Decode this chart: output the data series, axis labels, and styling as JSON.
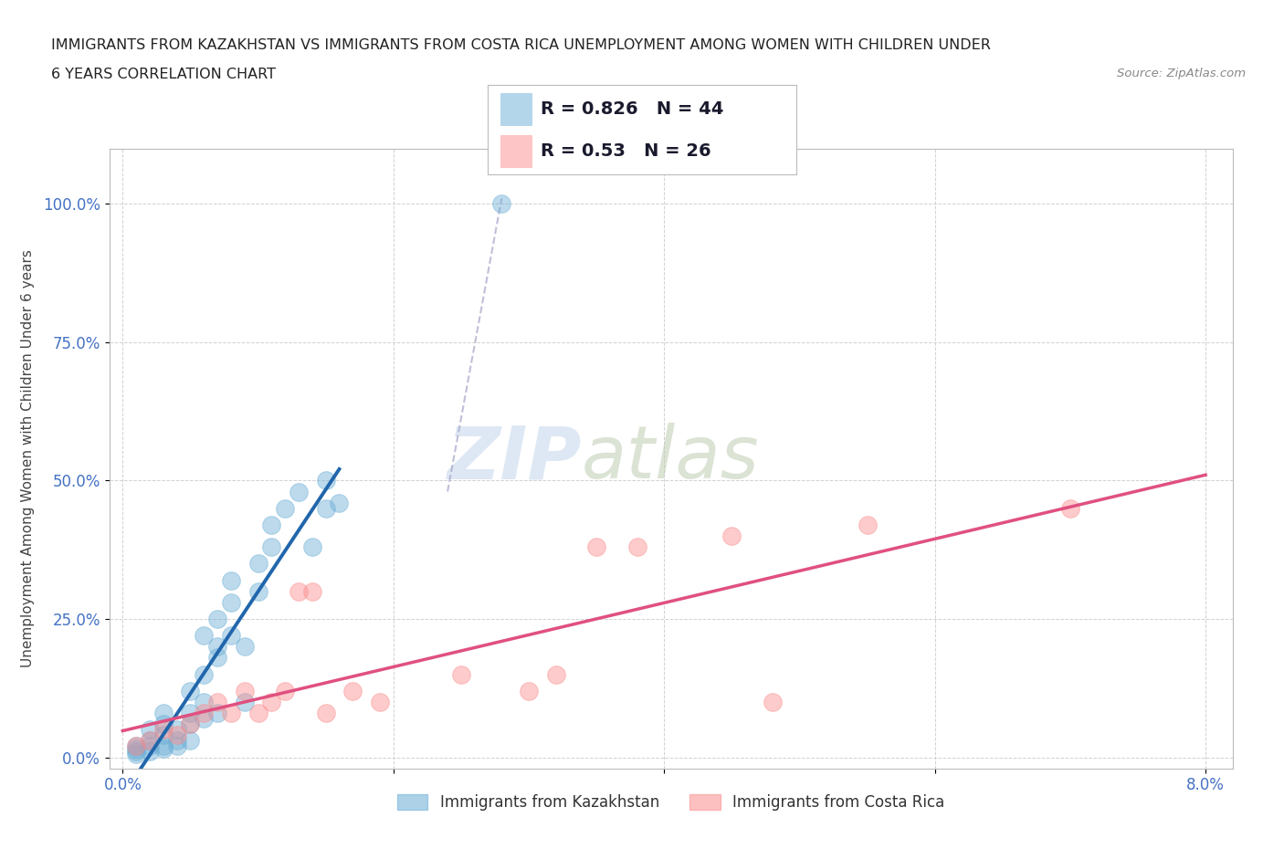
{
  "title_line1": "IMMIGRANTS FROM KAZAKHSTAN VS IMMIGRANTS FROM COSTA RICA UNEMPLOYMENT AMONG WOMEN WITH CHILDREN UNDER",
  "title_line2": "6 YEARS CORRELATION CHART",
  "source_text": "Source: ZipAtlas.com",
  "ylabel": "Unemployment Among Women with Children Under 6 years",
  "R_kaz": 0.826,
  "N_kaz": 44,
  "R_cr": 0.53,
  "N_cr": 26,
  "kazakhstan_color": "#6baed6",
  "costa_rica_color": "#fc8d8d",
  "kazakhstan_line_color": "#2166ac",
  "costa_rica_line_color": "#e05080",
  "kazakhstan_scatter": [
    [
      0.001,
      0.02
    ],
    [
      0.001,
      0.01
    ],
    [
      0.001,
      0.005
    ],
    [
      0.001,
      0.015
    ],
    [
      0.002,
      0.03
    ],
    [
      0.002,
      0.02
    ],
    [
      0.002,
      0.01
    ],
    [
      0.002,
      0.05
    ],
    [
      0.003,
      0.04
    ],
    [
      0.003,
      0.02
    ],
    [
      0.003,
      0.08
    ],
    [
      0.003,
      0.015
    ],
    [
      0.003,
      0.06
    ],
    [
      0.004,
      0.03
    ],
    [
      0.004,
      0.05
    ],
    [
      0.004,
      0.02
    ],
    [
      0.005,
      0.08
    ],
    [
      0.005,
      0.12
    ],
    [
      0.005,
      0.06
    ],
    [
      0.005,
      0.03
    ],
    [
      0.006,
      0.1
    ],
    [
      0.006,
      0.22
    ],
    [
      0.006,
      0.15
    ],
    [
      0.006,
      0.07
    ],
    [
      0.007,
      0.25
    ],
    [
      0.007,
      0.2
    ],
    [
      0.007,
      0.18
    ],
    [
      0.007,
      0.08
    ],
    [
      0.008,
      0.22
    ],
    [
      0.008,
      0.28
    ],
    [
      0.008,
      0.32
    ],
    [
      0.009,
      0.2
    ],
    [
      0.009,
      0.1
    ],
    [
      0.01,
      0.35
    ],
    [
      0.01,
      0.3
    ],
    [
      0.011,
      0.38
    ],
    [
      0.011,
      0.42
    ],
    [
      0.012,
      0.45
    ],
    [
      0.013,
      0.48
    ],
    [
      0.014,
      0.38
    ],
    [
      0.015,
      0.5
    ],
    [
      0.015,
      0.45
    ],
    [
      0.016,
      0.46
    ],
    [
      0.028,
      1.0
    ]
  ],
  "costa_rica_scatter": [
    [
      0.001,
      0.02
    ],
    [
      0.002,
      0.03
    ],
    [
      0.003,
      0.05
    ],
    [
      0.004,
      0.04
    ],
    [
      0.005,
      0.06
    ],
    [
      0.006,
      0.08
    ],
    [
      0.007,
      0.1
    ],
    [
      0.008,
      0.08
    ],
    [
      0.009,
      0.12
    ],
    [
      0.01,
      0.08
    ],
    [
      0.011,
      0.1
    ],
    [
      0.012,
      0.12
    ],
    [
      0.013,
      0.3
    ],
    [
      0.014,
      0.3
    ],
    [
      0.015,
      0.08
    ],
    [
      0.017,
      0.12
    ],
    [
      0.019,
      0.1
    ],
    [
      0.025,
      0.15
    ],
    [
      0.03,
      0.12
    ],
    [
      0.032,
      0.15
    ],
    [
      0.035,
      0.38
    ],
    [
      0.038,
      0.38
    ],
    [
      0.045,
      0.4
    ],
    [
      0.048,
      0.1
    ],
    [
      0.055,
      0.42
    ],
    [
      0.07,
      0.45
    ]
  ],
  "dashed_line": [
    [
      0.028,
      0.028
    ],
    [
      0.5,
      1.05
    ]
  ],
  "watermark_zip": "ZIP",
  "watermark_atlas": "atlas",
  "legend_label_kaz": "Immigrants from Kazakhstan",
  "legend_label_cr": "Immigrants from Costa Rica",
  "bg_color": "#ffffff",
  "grid_color": "#cccccc",
  "xlim": [
    0.0,
    0.082
  ],
  "ylim": [
    -0.02,
    1.1
  ],
  "x_tick_pos": [
    0.0,
    0.02,
    0.04,
    0.06,
    0.08
  ],
  "y_tick_pos": [
    0.0,
    0.25,
    0.5,
    0.75,
    1.0
  ]
}
